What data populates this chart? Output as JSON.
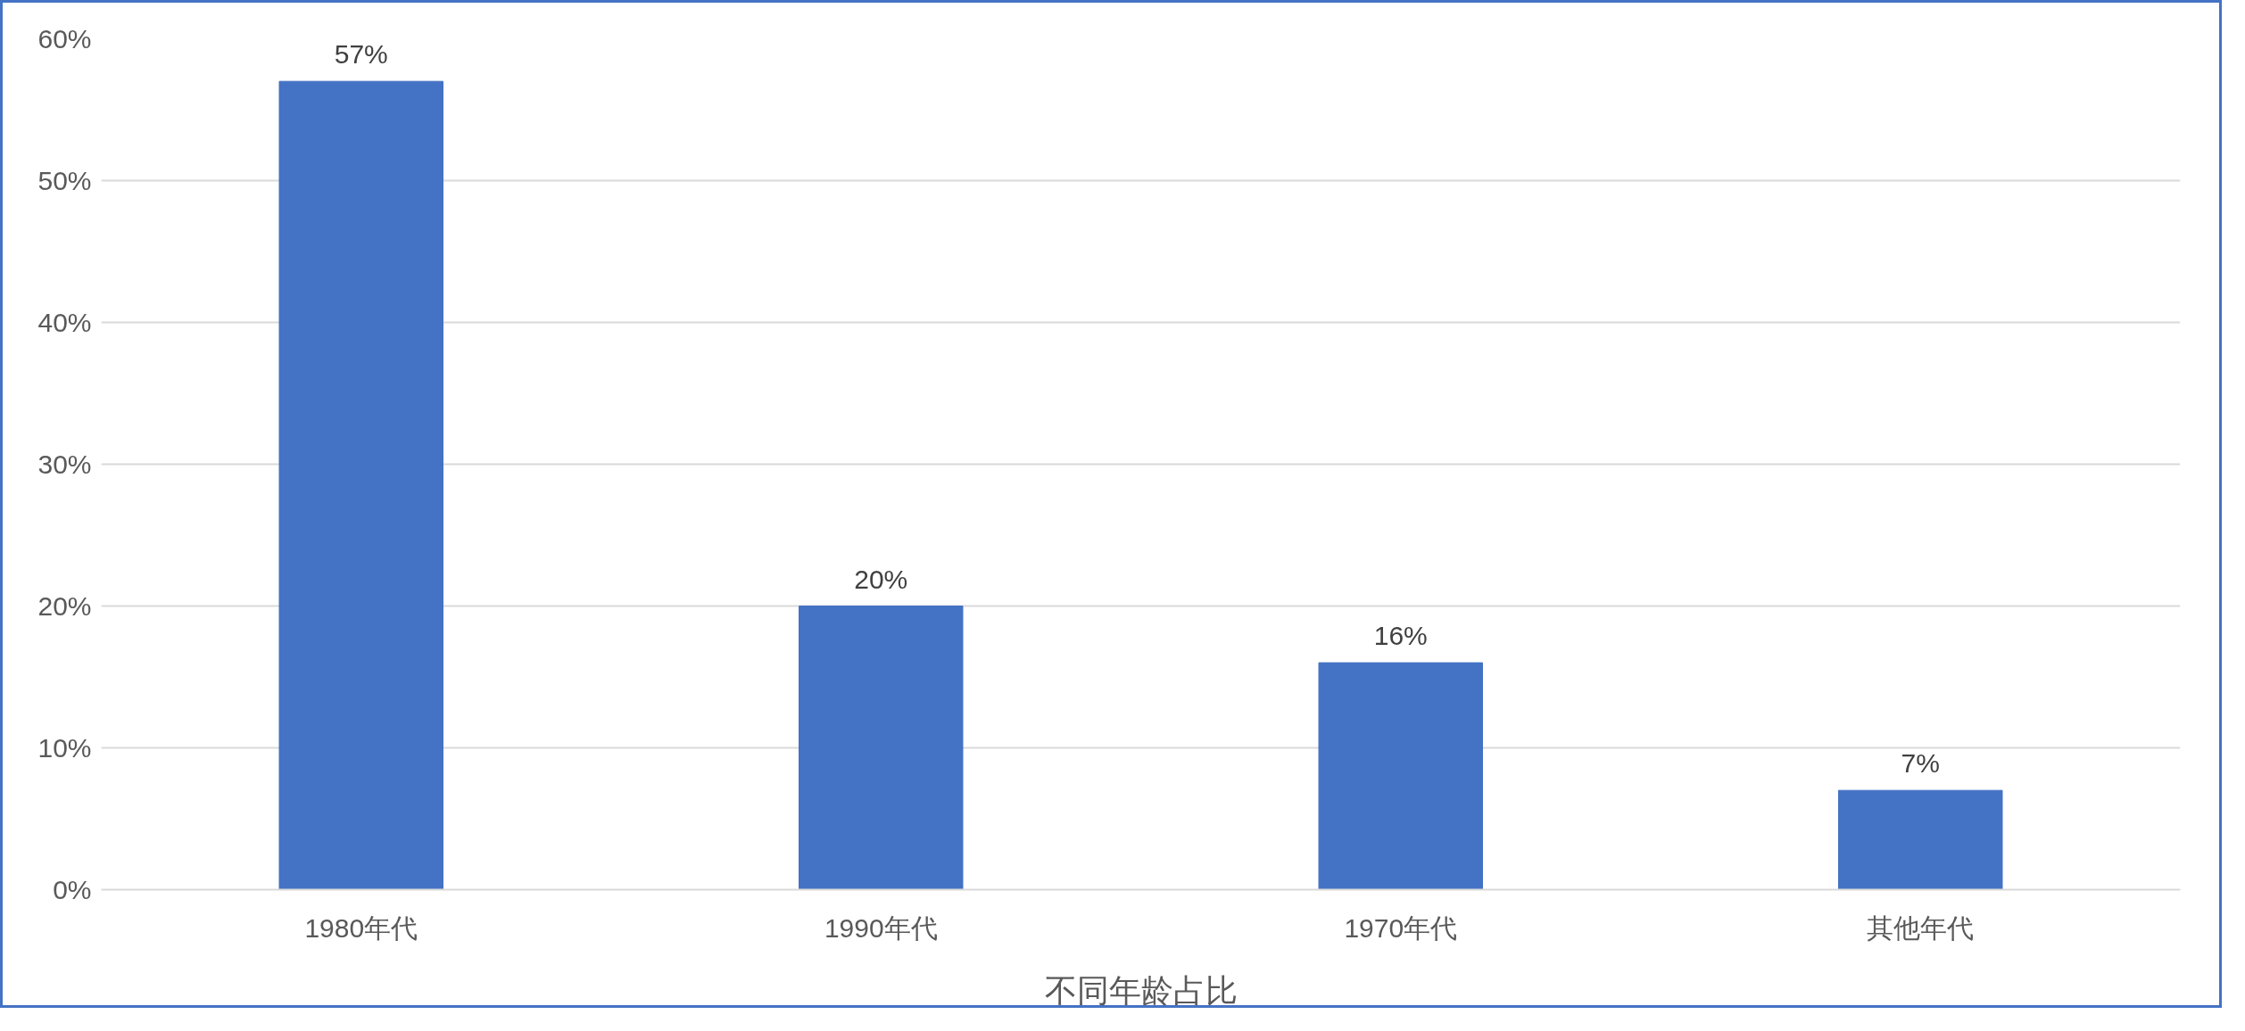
{
  "chart_data": {
    "type": "bar",
    "xlabel": "不同年龄占比",
    "categories": [
      "1980年代",
      "1990年代",
      "1970年代",
      "其他年代"
    ],
    "values": [
      57,
      20,
      16,
      7
    ],
    "color": "#4472c4",
    "value_labels": [
      "57%",
      "20%",
      "16%",
      "7%"
    ],
    "ylim": [
      0,
      60
    ],
    "yticks": [
      {
        "value": 0,
        "label": "0%"
      },
      {
        "value": 10,
        "label": "10%"
      },
      {
        "value": 20,
        "label": "20%"
      },
      {
        "value": 30,
        "label": "30%"
      },
      {
        "value": 40,
        "label": "40%"
      },
      {
        "value": 50,
        "label": "50%"
      },
      {
        "value": 60,
        "label": "60%"
      }
    ],
    "grid": "y"
  }
}
